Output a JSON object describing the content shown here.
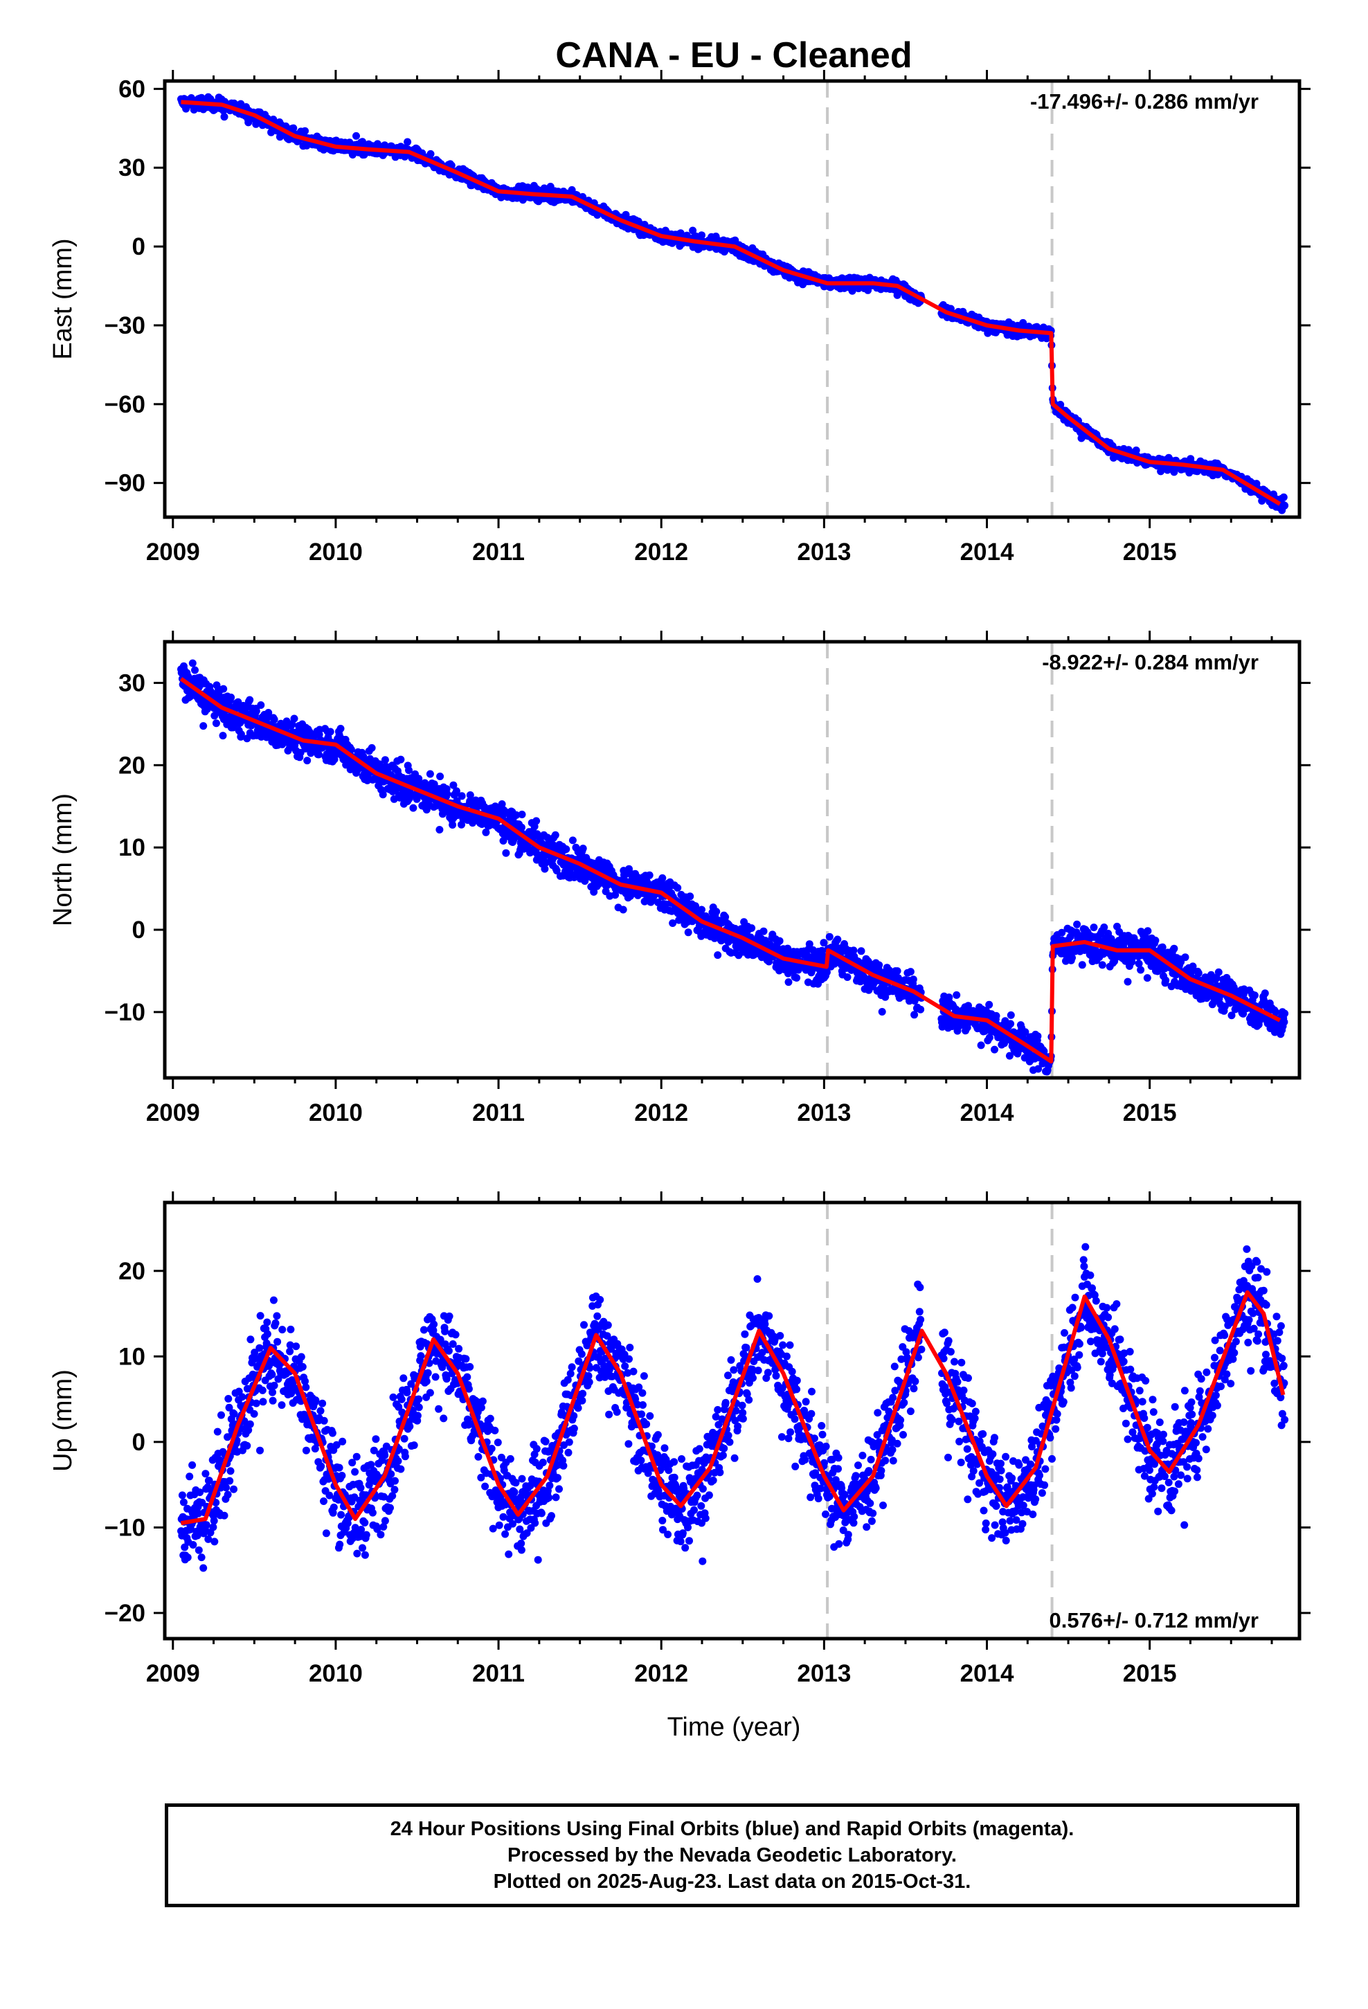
{
  "title": "CANA  - EU - Cleaned",
  "x_axis_label": "Time (year)",
  "footer": {
    "line1": "24 Hour Positions Using Final Orbits (blue) and Rapid Orbits (magenta).",
    "line2": "Processed by the Nevada Geodetic Laboratory.",
    "line3": "Plotted on 2025-Aug-23. Last data on 2015-Oct-31."
  },
  "colors": {
    "points": "#0000ff",
    "model": "#ff0000",
    "break_lines": "#c8c8c8",
    "frame": "#000000"
  },
  "chart_data": [
    {
      "type": "scatter",
      "component": "East",
      "ylabel": "East (mm)",
      "rate_label": "-17.496+/- 0.286 mm/yr",
      "xlim": [
        2008.95,
        2015.92
      ],
      "ylim": [
        -103,
        63
      ],
      "xticks": [
        2009,
        2010,
        2011,
        2012,
        2013,
        2014,
        2015
      ],
      "yticks": [
        60,
        30,
        0,
        -30,
        -60,
        -90
      ],
      "ytick_labels": [
        "60",
        "30",
        "0",
        "−30",
        "−60",
        "−90"
      ],
      "break_lines_x": [
        2013.02,
        2014.4
      ],
      "model_knots": [
        [
          2009.05,
          55
        ],
        [
          2009.3,
          54
        ],
        [
          2009.5,
          50
        ],
        [
          2009.75,
          42
        ],
        [
          2010.0,
          38
        ],
        [
          2010.2,
          37
        ],
        [
          2010.45,
          36
        ],
        [
          2010.75,
          28
        ],
        [
          2011.0,
          21
        ],
        [
          2011.2,
          20
        ],
        [
          2011.45,
          19
        ],
        [
          2011.75,
          10
        ],
        [
          2012.0,
          4
        ],
        [
          2012.2,
          2
        ],
        [
          2012.45,
          0
        ],
        [
          2012.75,
          -9
        ],
        [
          2013.02,
          -14
        ],
        [
          2013.3,
          -14
        ],
        [
          2013.45,
          -15
        ],
        [
          2013.75,
          -25
        ],
        [
          2014.0,
          -30
        ],
        [
          2014.2,
          -32
        ],
        [
          2014.395,
          -33
        ],
        [
          2014.405,
          -60
        ],
        [
          2014.5,
          -65
        ],
        [
          2014.75,
          -77
        ],
        [
          2015.0,
          -82
        ],
        [
          2015.2,
          -83
        ],
        [
          2015.45,
          -85
        ],
        [
          2015.8,
          -98
        ]
      ],
      "scatter_noise": 1.6,
      "outlier_noise": 2.5
    },
    {
      "type": "scatter",
      "component": "North",
      "ylabel": "North (mm)",
      "rate_label": "-8.922+/- 0.284 mm/yr",
      "xlim": [
        2008.95,
        2015.92
      ],
      "ylim": [
        -18,
        35
      ],
      "xticks": [
        2009,
        2010,
        2011,
        2012,
        2013,
        2014,
        2015
      ],
      "yticks": [
        30,
        20,
        10,
        0,
        -10
      ],
      "ytick_labels": [
        "30",
        "20",
        "10",
        "0",
        "−10"
      ],
      "break_lines_x": [
        2013.02,
        2014.4
      ],
      "model_knots": [
        [
          2009.05,
          30.5
        ],
        [
          2009.3,
          27
        ],
        [
          2009.55,
          25
        ],
        [
          2009.8,
          23
        ],
        [
          2010.0,
          22.5
        ],
        [
          2010.25,
          19
        ],
        [
          2010.5,
          17
        ],
        [
          2010.75,
          15
        ],
        [
          2011.0,
          13.5
        ],
        [
          2011.25,
          10
        ],
        [
          2011.5,
          8
        ],
        [
          2011.75,
          5.5
        ],
        [
          2012.0,
          4.5
        ],
        [
          2012.25,
          1
        ],
        [
          2012.5,
          -1
        ],
        [
          2012.75,
          -3.5
        ],
        [
          2013.015,
          -4.5
        ],
        [
          2013.025,
          -2.5
        ],
        [
          2013.3,
          -5.5
        ],
        [
          2013.55,
          -7.5
        ],
        [
          2013.8,
          -10.5
        ],
        [
          2014.0,
          -11
        ],
        [
          2014.2,
          -13.5
        ],
        [
          2014.395,
          -16
        ],
        [
          2014.405,
          -2
        ],
        [
          2014.6,
          -1.5
        ],
        [
          2014.8,
          -2.5
        ],
        [
          2015.0,
          -2.5
        ],
        [
          2015.25,
          -6
        ],
        [
          2015.5,
          -8
        ],
        [
          2015.8,
          -11
        ]
      ],
      "scatter_noise": 1.5,
      "outlier_noise": 2.5
    },
    {
      "type": "scatter",
      "component": "Up",
      "ylabel": "Up (mm)",
      "rate_label": "0.576+/- 0.712 mm/yr",
      "xlim": [
        2008.95,
        2015.92
      ],
      "ylim": [
        -23,
        28
      ],
      "xticks": [
        2009,
        2010,
        2011,
        2012,
        2013,
        2014,
        2015
      ],
      "yticks": [
        20,
        10,
        0,
        -10,
        -20
      ],
      "ytick_labels": [
        "20",
        "10",
        "0",
        "−10",
        "−20"
      ],
      "break_lines_x": [
        2013.02,
        2014.4
      ],
      "model_knots": [
        [
          2009.05,
          -9.5
        ],
        [
          2009.2,
          -9
        ],
        [
          2009.4,
          2
        ],
        [
          2009.6,
          11
        ],
        [
          2009.75,
          8
        ],
        [
          2010.0,
          -5
        ],
        [
          2010.12,
          -9
        ],
        [
          2010.3,
          -4
        ],
        [
          2010.6,
          12
        ],
        [
          2010.75,
          8
        ],
        [
          2011.0,
          -5
        ],
        [
          2011.12,
          -8.5
        ],
        [
          2011.3,
          -4
        ],
        [
          2011.6,
          12.5
        ],
        [
          2011.75,
          8
        ],
        [
          2012.0,
          -5
        ],
        [
          2012.12,
          -7.5
        ],
        [
          2012.3,
          -3
        ],
        [
          2012.6,
          13
        ],
        [
          2012.75,
          8
        ],
        [
          2013.0,
          -4
        ],
        [
          2013.12,
          -8
        ],
        [
          2013.3,
          -4
        ],
        [
          2013.6,
          13
        ],
        [
          2013.75,
          8
        ],
        [
          2014.0,
          -4
        ],
        [
          2014.12,
          -7.5
        ],
        [
          2014.3,
          -3
        ],
        [
          2014.6,
          17
        ],
        [
          2014.75,
          12
        ],
        [
          2015.0,
          -1
        ],
        [
          2015.12,
          -3.5
        ],
        [
          2015.3,
          2
        ],
        [
          2015.6,
          17.5
        ],
        [
          2015.7,
          15
        ],
        [
          2015.82,
          5.5
        ]
      ],
      "scatter_noise": 3.8,
      "outlier_noise": 6
    }
  ]
}
